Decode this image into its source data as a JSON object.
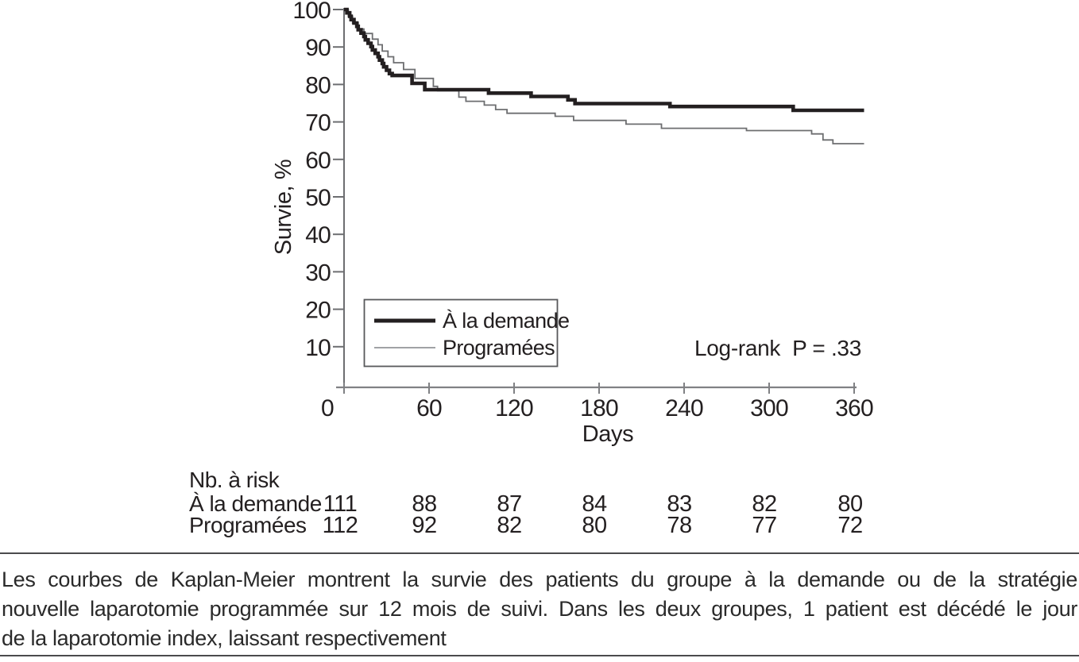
{
  "chart_data": {
    "type": "line",
    "variant": "kaplan-meier-step-curves",
    "title": "",
    "xlabel": "Days",
    "ylabel": "Survie, %",
    "x_ticks": [
      0,
      60,
      120,
      180,
      240,
      300,
      360
    ],
    "y_ticks": [
      100,
      90,
      80,
      70,
      60,
      50,
      40,
      30,
      20,
      10
    ],
    "xlim": [
      0,
      367
    ],
    "ylim": [
      0,
      100
    ],
    "grid": false,
    "legend_position": "inside-lower-left-box",
    "annotation": "Log-rank  P = .33",
    "axis_color": "#808184",
    "series": [
      {
        "name": "À la demande",
        "color": "#231f20",
        "line_width": 4.6,
        "points_day_percent": [
          [
            0,
            100
          ],
          [
            2,
            99.1
          ],
          [
            4,
            98.2
          ],
          [
            5,
            97.3
          ],
          [
            7,
            96.4
          ],
          [
            9,
            95.5
          ],
          [
            10,
            94.6
          ],
          [
            12,
            93.7
          ],
          [
            14,
            92.8
          ],
          [
            15,
            91.9
          ],
          [
            17,
            91.0
          ],
          [
            19,
            90.1
          ],
          [
            20,
            89.2
          ],
          [
            22,
            88.3
          ],
          [
            24,
            87.4
          ],
          [
            25,
            86.5
          ],
          [
            27,
            85.6
          ],
          [
            28,
            84.7
          ],
          [
            30,
            83.8
          ],
          [
            32,
            82.9
          ],
          [
            34,
            82.4
          ],
          [
            48,
            80.3
          ],
          [
            57,
            78.6
          ],
          [
            102,
            77.7
          ],
          [
            132,
            76.8
          ],
          [
            158,
            75.9
          ],
          [
            163,
            74.9
          ],
          [
            230,
            74.1
          ],
          [
            317,
            73.1
          ],
          [
            367,
            73.1
          ]
        ]
      },
      {
        "name": "Programées",
        "color": "#6d6e70",
        "line_width": 1.8,
        "points_day_percent": [
          [
            0,
            100
          ],
          [
            3,
            98.2
          ],
          [
            6,
            96.4
          ],
          [
            10,
            94.8
          ],
          [
            14,
            93.6
          ],
          [
            20,
            92.1
          ],
          [
            24,
            90.6
          ],
          [
            27,
            88.9
          ],
          [
            31,
            87.4
          ],
          [
            35,
            85.8
          ],
          [
            42,
            84.0
          ],
          [
            50,
            81.6
          ],
          [
            63,
            79.5
          ],
          [
            66,
            78.3
          ],
          [
            81,
            76.6
          ],
          [
            86,
            75.5
          ],
          [
            99,
            74.5
          ],
          [
            107,
            73.3
          ],
          [
            115,
            72.3
          ],
          [
            149,
            71.5
          ],
          [
            162,
            70.4
          ],
          [
            199,
            69.4
          ],
          [
            224,
            68.3
          ],
          [
            284,
            67.7
          ],
          [
            330,
            66.8
          ],
          [
            338,
            65.2
          ],
          [
            345,
            64.2
          ],
          [
            367,
            64.2
          ]
        ]
      }
    ]
  },
  "risk_table": {
    "header": "Nb. à risk",
    "time_points": [
      0,
      60,
      120,
      180,
      240,
      300,
      360
    ],
    "rows": [
      {
        "label": "À la demande",
        "values": [
          "111",
          "88",
          "87",
          "84",
          "83",
          "82",
          "80"
        ]
      },
      {
        "label": "Programées",
        "values": [
          "112",
          "92",
          "82",
          "80",
          "78",
          "77",
          "72"
        ]
      }
    ]
  },
  "caption": {
    "lines": [
      "Les courbes de Kaplan-Meier montrent la survie des patients du groupe à la demande ou de la stratégie",
      "nouvelle laparotomie programmée sur 12 mois de suivi. Dans les deux groupes, 1 patient est décédé le jour",
      "de la laparotomie index, laissant respectivement"
    ]
  }
}
